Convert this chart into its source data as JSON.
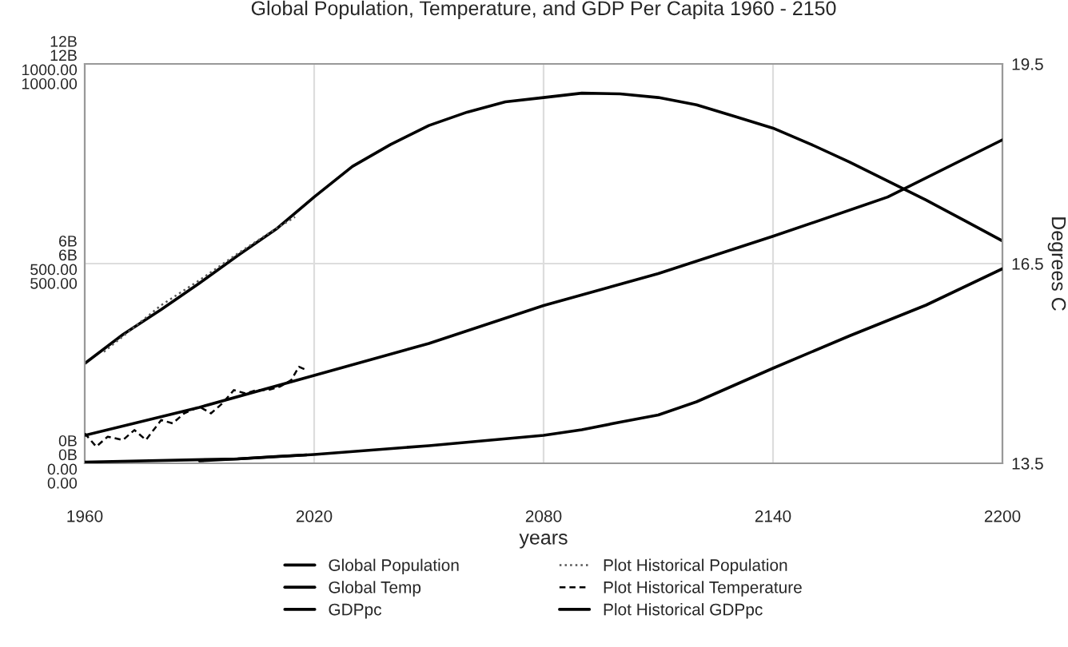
{
  "chart_data": {
    "type": "line",
    "title": "Global Population, Temperature, and GDP Per Capita 1960 - 2150",
    "xlabel": "years",
    "y2label": "Degrees C",
    "xlim": [
      1960,
      2200
    ],
    "xticks": [
      1960,
      2020,
      2080,
      2140,
      2200
    ],
    "ylim": [
      0,
      12
    ],
    "yticks": [
      {
        "value": 0,
        "label": "0B"
      },
      {
        "value": 6,
        "label": "6B"
      },
      {
        "value": 12,
        "label": "12B"
      }
    ],
    "y3lim": [
      0,
      1000
    ],
    "y3ticks": [
      {
        "value": 0,
        "label": "0.00"
      },
      {
        "value": 500,
        "label": "500.00"
      },
      {
        "value": 1000,
        "label": "1000.00"
      }
    ],
    "y2lim": [
      13.5,
      19.5
    ],
    "y2ticks": [
      13.5,
      16.5,
      19.5
    ],
    "grid": true,
    "legend": "bottom",
    "series": [
      {
        "name": "Global Population",
        "color": "#000000",
        "axis": "y",
        "line_style": "solid",
        "x": [
          1960,
          1970,
          1980,
          1990,
          2000,
          2010,
          2020,
          2030,
          2040,
          2050,
          2060,
          2070,
          2080,
          2090,
          2100,
          2110,
          2120,
          2130,
          2140,
          2150,
          2160,
          2170,
          2180,
          2190,
          2200
        ],
        "values": [
          3.0,
          3.87,
          4.62,
          5.41,
          6.24,
          7.03,
          8.0,
          8.92,
          9.58,
          10.15,
          10.55,
          10.86,
          10.99,
          11.12,
          11.1,
          10.99,
          10.77,
          10.42,
          10.07,
          9.58,
          9.05,
          8.48,
          7.91,
          7.3,
          6.68
        ]
      },
      {
        "name": "Plot Historical Population",
        "color": "#555555",
        "axis": "y",
        "line_style": "dotted",
        "x": [
          1965,
          1980,
          1990,
          2000,
          2010,
          2015
        ],
        "values": [
          3.35,
          4.75,
          5.5,
          6.3,
          7.05,
          7.4
        ]
      },
      {
        "name": "Global Temp",
        "color": "#000000",
        "axis": "y2",
        "line_style": "solid",
        "x": [
          1960,
          1990,
          2020,
          2050,
          2080,
          2110,
          2140,
          2170,
          2200
        ],
        "values": [
          13.92,
          14.34,
          14.82,
          15.3,
          15.87,
          16.35,
          16.91,
          17.5,
          18.36
        ]
      },
      {
        "name": "Plot Historical Temperature",
        "color": "#000000",
        "axis": "y2",
        "line_style": "dashed",
        "x": [
          1960,
          1963,
          1966,
          1970,
          1973,
          1976,
          1980,
          1983,
          1986,
          1990,
          1993,
          1996,
          1999,
          2002,
          2005,
          2008,
          2011,
          2014,
          2016,
          2018
        ],
        "values": [
          13.95,
          13.75,
          13.9,
          13.85,
          14.0,
          13.85,
          14.15,
          14.1,
          14.25,
          14.35,
          14.25,
          14.4,
          14.6,
          14.55,
          14.6,
          14.6,
          14.65,
          14.75,
          14.95,
          14.9
        ]
      },
      {
        "name": "GDPpc",
        "color": "#000000",
        "axis": "y3",
        "line_style": "solid",
        "x": [
          1960,
          2000,
          2020,
          2050,
          2080,
          2090,
          2100,
          2110,
          2120,
          2140,
          2160,
          2180,
          2200
        ],
        "values": [
          3,
          11,
          22,
          44,
          70,
          84,
          103,
          121,
          154,
          238,
          319,
          396,
          487
        ]
      },
      {
        "name": "Plot Historical GDPpc",
        "color": "#000000",
        "axis": "y3",
        "line_style": "solid",
        "x": [
          1990,
          2000,
          2010,
          2018
        ],
        "values": [
          6,
          11,
          17,
          21
        ]
      }
    ]
  }
}
